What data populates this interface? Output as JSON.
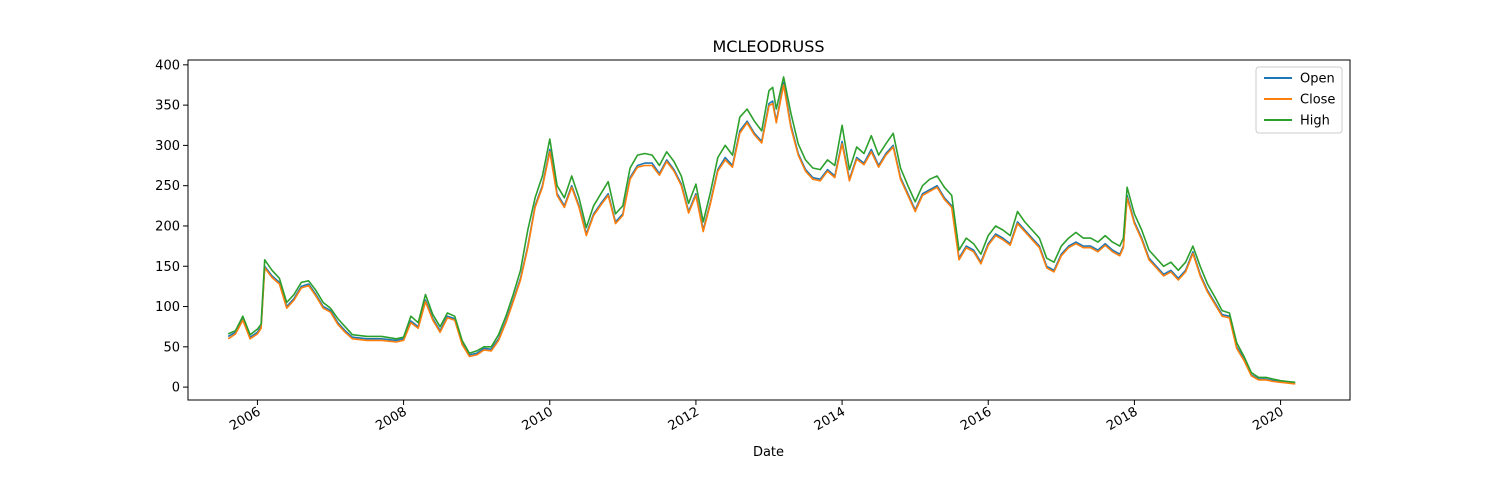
{
  "chart_data": {
    "type": "line",
    "title": "MCLEODRUSS",
    "xlabel": "Date",
    "ylabel": "",
    "xlim": [
      2005.05,
      2020.95
    ],
    "ylim": [
      -16,
      406
    ],
    "x_ticks": [
      2006,
      2008,
      2010,
      2012,
      2014,
      2016,
      2018,
      2020
    ],
    "x_tick_labels": [
      "2006",
      "2008",
      "2010",
      "2012",
      "2014",
      "2016",
      "2018",
      "2020"
    ],
    "y_ticks": [
      0,
      50,
      100,
      150,
      200,
      250,
      300,
      350,
      400
    ],
    "y_tick_labels": [
      "0",
      "50",
      "100",
      "150",
      "200",
      "250",
      "300",
      "350",
      "400"
    ],
    "grid": false,
    "legend_position": "top-right",
    "x": [
      2005.6,
      2005.7,
      2005.8,
      2005.9,
      2006.0,
      2006.05,
      2006.1,
      2006.2,
      2006.3,
      2006.4,
      2006.5,
      2006.6,
      2006.7,
      2006.8,
      2006.9,
      2007.0,
      2007.1,
      2007.2,
      2007.3,
      2007.5,
      2007.7,
      2007.9,
      2008.0,
      2008.1,
      2008.2,
      2008.3,
      2008.4,
      2008.5,
      2008.6,
      2008.7,
      2008.8,
      2008.9,
      2009.0,
      2009.1,
      2009.2,
      2009.3,
      2009.4,
      2009.5,
      2009.6,
      2009.7,
      2009.8,
      2009.9,
      2010.0,
      2010.1,
      2010.2,
      2010.3,
      2010.4,
      2010.5,
      2010.6,
      2010.7,
      2010.8,
      2010.9,
      2011.0,
      2011.1,
      2011.2,
      2011.3,
      2011.4,
      2011.5,
      2011.6,
      2011.7,
      2011.8,
      2011.9,
      2012.0,
      2012.1,
      2012.2,
      2012.3,
      2012.4,
      2012.5,
      2012.6,
      2012.7,
      2012.8,
      2012.9,
      2013.0,
      2013.05,
      2013.1,
      2013.2,
      2013.3,
      2013.4,
      2013.5,
      2013.6,
      2013.7,
      2013.8,
      2013.9,
      2014.0,
      2014.1,
      2014.2,
      2014.3,
      2014.4,
      2014.5,
      2014.6,
      2014.7,
      2014.8,
      2014.9,
      2015.0,
      2015.1,
      2015.2,
      2015.3,
      2015.4,
      2015.5,
      2015.6,
      2015.7,
      2015.8,
      2015.9,
      2016.0,
      2016.1,
      2016.2,
      2016.3,
      2016.4,
      2016.5,
      2016.6,
      2016.7,
      2016.8,
      2016.9,
      2017.0,
      2017.1,
      2017.2,
      2017.3,
      2017.4,
      2017.5,
      2017.6,
      2017.7,
      2017.8,
      2017.85,
      2017.9,
      2018.0,
      2018.1,
      2018.2,
      2018.3,
      2018.4,
      2018.5,
      2018.6,
      2018.7,
      2018.8,
      2018.9,
      2019.0,
      2019.1,
      2019.2,
      2019.3,
      2019.4,
      2019.5,
      2019.6,
      2019.7,
      2019.8,
      2019.9,
      2020.0,
      2020.1,
      2020.2
    ],
    "series": [
      {
        "name": "Open",
        "color": "#1f77b4",
        "values": [
          63,
          68,
          85,
          62,
          68,
          75,
          150,
          138,
          130,
          100,
          110,
          125,
          128,
          115,
          100,
          95,
          80,
          70,
          62,
          60,
          60,
          58,
          60,
          82,
          75,
          108,
          85,
          70,
          88,
          85,
          55,
          40,
          42,
          48,
          47,
          60,
          82,
          108,
          135,
          175,
          225,
          250,
          295,
          240,
          225,
          250,
          225,
          190,
          215,
          228,
          240,
          205,
          215,
          260,
          275,
          278,
          278,
          265,
          282,
          270,
          252,
          218,
          240,
          195,
          230,
          270,
          285,
          275,
          318,
          330,
          315,
          305,
          352,
          355,
          330,
          378,
          325,
          290,
          270,
          260,
          258,
          270,
          262,
          305,
          258,
          285,
          278,
          295,
          275,
          290,
          300,
          260,
          240,
          220,
          240,
          245,
          250,
          235,
          225,
          160,
          175,
          170,
          155,
          178,
          190,
          185,
          178,
          205,
          195,
          185,
          175,
          150,
          145,
          165,
          175,
          180,
          175,
          175,
          170,
          178,
          170,
          165,
          175,
          238,
          205,
          185,
          160,
          150,
          140,
          145,
          135,
          145,
          168,
          140,
          120,
          105,
          90,
          88,
          50,
          35,
          15,
          10,
          10,
          8,
          7,
          6,
          5
        ]
      },
      {
        "name": "Close",
        "color": "#ff7f0e",
        "values": [
          60,
          66,
          83,
          60,
          66,
          73,
          148,
          136,
          128,
          98,
          108,
          123,
          126,
          113,
          98,
          93,
          78,
          68,
          60,
          58,
          58,
          56,
          58,
          80,
          73,
          106,
          83,
          68,
          86,
          83,
          53,
          38,
          40,
          46,
          45,
          58,
          80,
          106,
          133,
          173,
          223,
          248,
          292,
          238,
          223,
          248,
          223,
          188,
          213,
          226,
          238,
          203,
          213,
          258,
          273,
          275,
          275,
          263,
          280,
          268,
          250,
          216,
          238,
          193,
          228,
          268,
          282,
          273,
          315,
          328,
          313,
          303,
          349,
          352,
          328,
          375,
          322,
          288,
          268,
          258,
          256,
          268,
          260,
          302,
          256,
          283,
          276,
          292,
          273,
          288,
          298,
          258,
          238,
          218,
          238,
          243,
          248,
          233,
          223,
          158,
          173,
          168,
          153,
          176,
          188,
          183,
          176,
          203,
          193,
          183,
          173,
          148,
          143,
          163,
          173,
          178,
          173,
          173,
          168,
          176,
          168,
          163,
          173,
          235,
          203,
          183,
          158,
          148,
          138,
          143,
          133,
          143,
          166,
          138,
          118,
          103,
          88,
          86,
          48,
          33,
          14,
          9,
          9,
          7,
          6,
          5,
          4
        ]
      },
      {
        "name": "High",
        "color": "#2ca02c",
        "values": [
          66,
          70,
          88,
          65,
          72,
          78,
          158,
          145,
          135,
          105,
          115,
          130,
          132,
          120,
          105,
          98,
          85,
          75,
          65,
          63,
          63,
          60,
          62,
          88,
          80,
          115,
          90,
          75,
          92,
          88,
          58,
          42,
          45,
          50,
          50,
          65,
          88,
          115,
          145,
          195,
          235,
          262,
          308,
          250,
          235,
          262,
          235,
          198,
          225,
          240,
          255,
          215,
          225,
          272,
          288,
          290,
          288,
          275,
          292,
          280,
          262,
          228,
          252,
          205,
          242,
          285,
          300,
          288,
          335,
          345,
          330,
          318,
          368,
          372,
          345,
          385,
          340,
          302,
          282,
          272,
          270,
          282,
          275,
          325,
          270,
          298,
          290,
          312,
          288,
          302,
          315,
          272,
          250,
          230,
          250,
          258,
          262,
          248,
          238,
          170,
          185,
          178,
          165,
          188,
          200,
          195,
          188,
          218,
          205,
          195,
          185,
          160,
          155,
          175,
          185,
          192,
          185,
          185,
          180,
          188,
          180,
          175,
          185,
          248,
          215,
          195,
          170,
          160,
          150,
          155,
          145,
          155,
          175,
          150,
          128,
          112,
          95,
          92,
          55,
          38,
          18,
          12,
          12,
          10,
          8,
          7,
          6
        ]
      }
    ]
  }
}
